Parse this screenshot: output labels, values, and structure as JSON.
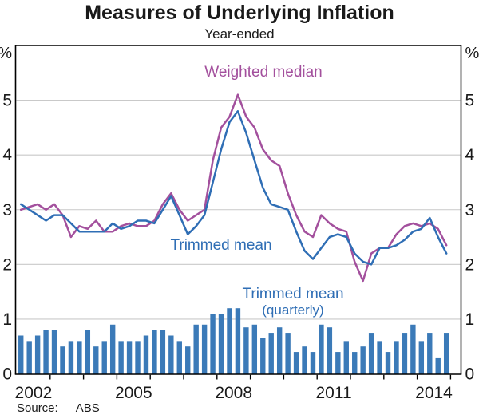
{
  "page": {
    "title": "Measures of Underlying Inflation",
    "subtitle": "Year-ended",
    "source_label": "Source:",
    "source_value": "ABS"
  },
  "annotations": {
    "weighted_median": {
      "text": "Weighted median",
      "color": "#a3509d"
    },
    "trimmed_mean": {
      "text": "Trimmed mean",
      "color": "#2f6eb5"
    },
    "trimmed_mean_quarterly": {
      "line1": "Trimmed mean",
      "line2": "(quarterly)",
      "color": "#2f6eb5"
    }
  },
  "chart_data": {
    "type": "line+bar",
    "title": "Measures of Underlying Inflation",
    "subtitle": "Year-ended",
    "unit": "%",
    "ylim": [
      0,
      6
    ],
    "yticks": [
      0,
      1,
      2,
      3,
      4,
      5
    ],
    "grid": true,
    "x_year_labels": [
      2002,
      2005,
      2008,
      2011,
      2014
    ],
    "x_tick_years_start": 2003,
    "x_tick_years_end": 2015,
    "quarters": [
      "2002 Q1",
      "2002 Q2",
      "2002 Q3",
      "2002 Q4",
      "2003 Q1",
      "2003 Q2",
      "2003 Q3",
      "2003 Q4",
      "2004 Q1",
      "2004 Q2",
      "2004 Q3",
      "2004 Q4",
      "2005 Q1",
      "2005 Q2",
      "2005 Q3",
      "2005 Q4",
      "2006 Q1",
      "2006 Q2",
      "2006 Q3",
      "2006 Q4",
      "2007 Q1",
      "2007 Q2",
      "2007 Q3",
      "2007 Q4",
      "2008 Q1",
      "2008 Q2",
      "2008 Q3",
      "2008 Q4",
      "2009 Q1",
      "2009 Q2",
      "2009 Q3",
      "2009 Q4",
      "2010 Q1",
      "2010 Q2",
      "2010 Q3",
      "2010 Q4",
      "2011 Q1",
      "2011 Q2",
      "2011 Q3",
      "2011 Q4",
      "2012 Q1",
      "2012 Q2",
      "2012 Q3",
      "2012 Q4",
      "2013 Q1",
      "2013 Q2",
      "2013 Q3",
      "2013 Q4",
      "2014 Q1",
      "2014 Q2",
      "2014 Q3",
      "2014 Q4"
    ],
    "series": [
      {
        "name": "Weighted median",
        "style": "line",
        "color": "#a3509d",
        "values": [
          3.0,
          3.05,
          3.1,
          3.0,
          3.1,
          2.9,
          2.5,
          2.7,
          2.65,
          2.8,
          2.6,
          2.6,
          2.7,
          2.75,
          2.7,
          2.7,
          2.8,
          3.1,
          3.3,
          3.0,
          2.8,
          2.9,
          3.0,
          3.9,
          4.5,
          4.7,
          5.1,
          4.7,
          4.5,
          4.1,
          3.9,
          3.8,
          3.3,
          2.9,
          2.6,
          2.5,
          2.9,
          2.75,
          2.65,
          2.6,
          2.05,
          1.7,
          2.2,
          2.3,
          2.3,
          2.55,
          2.7,
          2.75,
          2.7,
          2.75,
          2.65,
          2.35
        ]
      },
      {
        "name": "Trimmed mean",
        "style": "line",
        "color": "#2f6eb5",
        "values": [
          3.1,
          3.0,
          2.9,
          2.8,
          2.9,
          2.9,
          2.75,
          2.6,
          2.6,
          2.6,
          2.6,
          2.75,
          2.65,
          2.7,
          2.8,
          2.8,
          2.75,
          3.0,
          3.25,
          2.9,
          2.55,
          2.7,
          2.9,
          3.5,
          4.1,
          4.6,
          4.8,
          4.4,
          3.9,
          3.4,
          3.1,
          3.05,
          3.0,
          2.6,
          2.25,
          2.1,
          2.3,
          2.5,
          2.55,
          2.5,
          2.2,
          2.05,
          2.0,
          2.3,
          2.3,
          2.35,
          2.45,
          2.6,
          2.65,
          2.85,
          2.5,
          2.2
        ]
      },
      {
        "name": "Trimmed mean (quarterly)",
        "style": "bar",
        "color": "#3b7ab8",
        "values": [
          0.7,
          0.6,
          0.7,
          0.8,
          0.8,
          0.5,
          0.6,
          0.6,
          0.8,
          0.5,
          0.6,
          0.9,
          0.6,
          0.6,
          0.6,
          0.7,
          0.8,
          0.8,
          0.7,
          0.6,
          0.5,
          0.9,
          0.9,
          1.1,
          1.1,
          1.2,
          1.2,
          0.85,
          0.9,
          0.65,
          0.75,
          0.85,
          0.75,
          0.4,
          0.5,
          0.4,
          0.9,
          0.85,
          0.4,
          0.6,
          0.4,
          0.5,
          0.75,
          0.6,
          0.4,
          0.6,
          0.75,
          0.9,
          0.6,
          0.75,
          0.3,
          0.75
        ]
      }
    ],
    "colors": {
      "gridline": "#c9c9c9",
      "axis": "#000000",
      "text": "#1a1a1a"
    }
  }
}
